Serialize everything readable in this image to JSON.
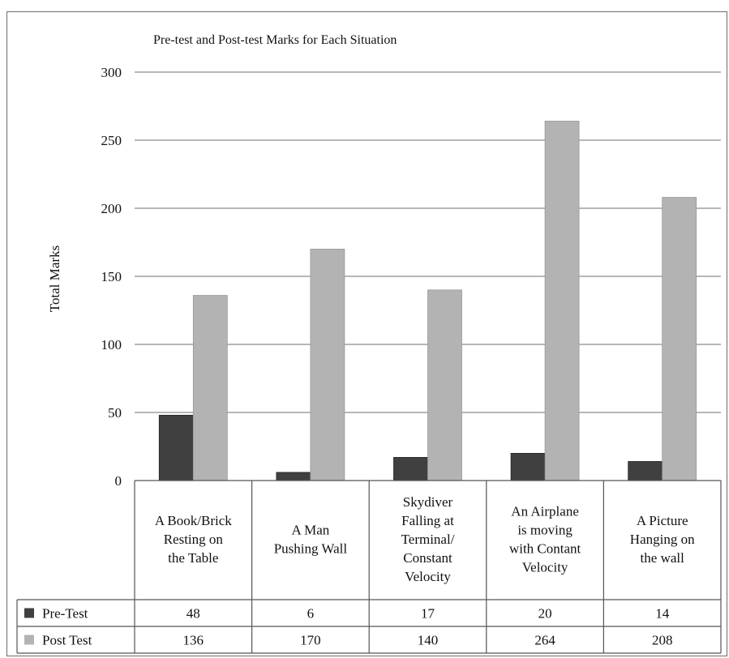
{
  "chart_data": {
    "type": "bar",
    "title": "Pre-test and Post-test Marks for Each Situation",
    "ylabel": "Total Marks",
    "xlabel": "",
    "ylim": [
      0,
      300
    ],
    "yticks": [
      0,
      50,
      100,
      150,
      200,
      250,
      300
    ],
    "grid": true,
    "legend": "data-table",
    "categories": [
      [
        "A Book/Brick",
        "Resting on",
        "the Table"
      ],
      [
        "A Man",
        "Pushing Wall"
      ],
      [
        "Skydiver",
        "Falling at",
        "Terminal/",
        "Constant",
        "Velocity"
      ],
      [
        "An Airplane",
        "is moving",
        "with Contant",
        "Velocity"
      ],
      [
        "A Picture",
        "Hanging on",
        "the wall"
      ]
    ],
    "series": [
      {
        "name": "Pre-Test",
        "color": "#404040",
        "values": [
          48,
          6,
          17,
          20,
          14
        ]
      },
      {
        "name": "Post Test",
        "color": "#b3b3b3",
        "values": [
          136,
          170,
          140,
          264,
          208
        ]
      }
    ]
  }
}
